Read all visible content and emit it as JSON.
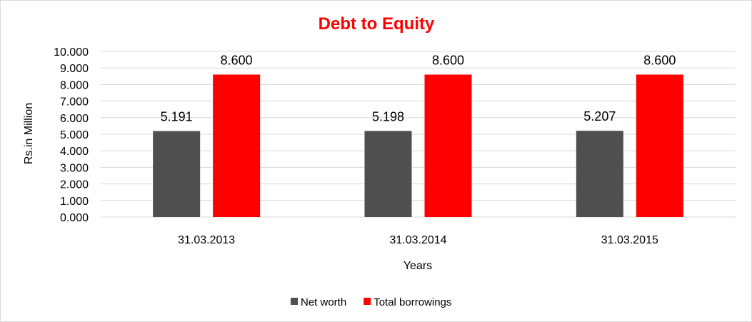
{
  "chart_data": {
    "type": "bar",
    "title": "Debt to Equity",
    "xlabel": "Years",
    "ylabel": "Rs.in Million",
    "categories": [
      "31.03.2013",
      "31.03.2014",
      "31.03.2015"
    ],
    "series": [
      {
        "name": "Net worth",
        "values": [
          5.191,
          5.198,
          5.207
        ],
        "labels": [
          "5.191",
          "5.198",
          "5.207"
        ],
        "color": "#4f4f4f"
      },
      {
        "name": "Total borrowings",
        "values": [
          8.6,
          8.6,
          8.6
        ],
        "labels": [
          "8.600",
          "8.600",
          "8.600"
        ],
        "color": "#ff0000"
      }
    ],
    "ylim": [
      0,
      10
    ],
    "yticks": [
      0,
      1,
      2,
      3,
      4,
      5,
      6,
      7,
      8,
      9,
      10
    ],
    "ytick_labels": [
      "0.000",
      "1.000",
      "2.000",
      "3.000",
      "4.000",
      "5.000",
      "6.000",
      "7.000",
      "8.000",
      "9.000",
      "10.000"
    ],
    "grid": true,
    "legend_position": "bottom",
    "title_color": "#ff0000"
  }
}
